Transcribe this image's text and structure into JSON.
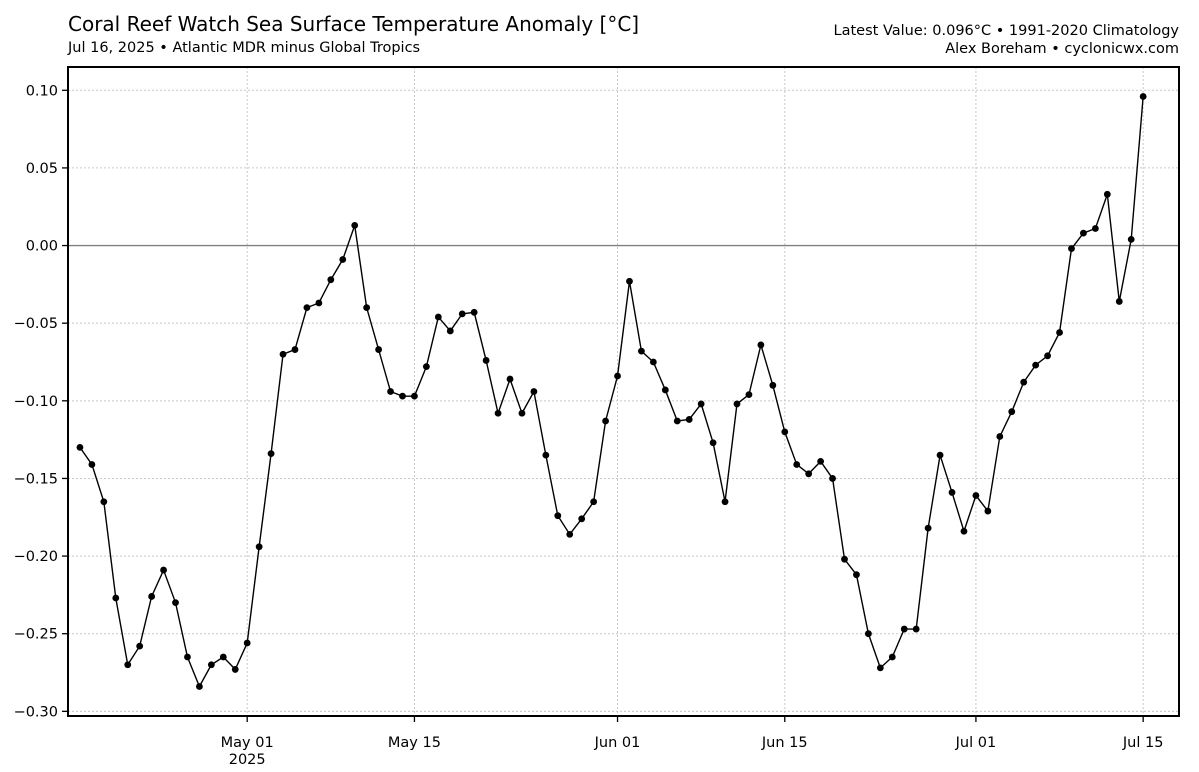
{
  "header": {
    "title": "Coral Reef Watch Sea Surface Temperature Anomaly [°C]",
    "subtitle": "Jul 16, 2025 • Atlantic MDR minus Global Tropics",
    "right_line1": "Latest Value: 0.096°C • 1991-2020 Climatology",
    "right_line2": "Alex Boreham • cyclonicwx.com"
  },
  "chart_data": {
    "type": "line",
    "title": "Coral Reef Watch Sea Surface Temperature Anomaly [°C]",
    "subtitle": "Jul 16, 2025 • Atlantic MDR minus Global Tropics",
    "xlabel": "",
    "ylabel": "",
    "x_start": "2025-04-17",
    "x_end": "2025-07-16",
    "xlim": [
      "2025-04-16",
      "2025-07-18"
    ],
    "ylim": [
      -0.303,
      0.115
    ],
    "grid": true,
    "zero_line": true,
    "line_color": "#000000",
    "zero_line_color": "#808080",
    "xticks": [
      {
        "date": "2025-05-01",
        "label": "May 01",
        "sublabel": "2025"
      },
      {
        "date": "2025-05-15",
        "label": "May 15",
        "sublabel": ""
      },
      {
        "date": "2025-06-01",
        "label": "Jun 01",
        "sublabel": ""
      },
      {
        "date": "2025-06-15",
        "label": "Jun 15",
        "sublabel": ""
      },
      {
        "date": "2025-07-01",
        "label": "Jul 01",
        "sublabel": ""
      },
      {
        "date": "2025-07-15",
        "label": "Jul 15",
        "sublabel": ""
      }
    ],
    "yticks": [
      {
        "value": 0.1,
        "label": "0.10"
      },
      {
        "value": 0.05,
        "label": "0.05"
      },
      {
        "value": 0.0,
        "label": "0.00"
      },
      {
        "value": -0.05,
        "label": "−0.05"
      },
      {
        "value": -0.1,
        "label": "−0.10"
      },
      {
        "value": -0.15,
        "label": "−0.15"
      },
      {
        "value": -0.2,
        "label": "−0.20"
      },
      {
        "value": -0.25,
        "label": "−0.25"
      },
      {
        "value": -0.3,
        "label": "−0.30"
      }
    ],
    "values": [
      -0.13,
      -0.141,
      -0.165,
      -0.227,
      -0.27,
      -0.258,
      -0.226,
      -0.209,
      -0.23,
      -0.265,
      -0.284,
      -0.27,
      -0.265,
      -0.273,
      -0.256,
      -0.194,
      -0.134,
      -0.07,
      -0.067,
      -0.04,
      -0.037,
      -0.022,
      -0.009,
      0.013,
      -0.04,
      -0.067,
      -0.094,
      -0.097,
      -0.097,
      -0.078,
      -0.046,
      -0.055,
      -0.044,
      -0.043,
      -0.074,
      -0.108,
      -0.086,
      -0.108,
      -0.094,
      -0.135,
      -0.174,
      -0.186,
      -0.176,
      -0.165,
      -0.113,
      -0.084,
      -0.023,
      -0.068,
      -0.075,
      -0.093,
      -0.113,
      -0.112,
      -0.102,
      -0.127,
      -0.165,
      -0.102,
      -0.096,
      -0.064,
      -0.09,
      -0.12,
      -0.141,
      -0.147,
      -0.139,
      -0.15,
      -0.202,
      -0.212,
      -0.25,
      -0.272,
      -0.265,
      -0.247,
      -0.247,
      -0.182,
      -0.135,
      -0.159,
      -0.184,
      -0.161,
      -0.171,
      -0.123,
      -0.107,
      -0.088,
      -0.077,
      -0.071,
      -0.056,
      -0.002,
      0.008,
      0.011,
      0.033,
      -0.036,
      0.004,
      0.096
    ]
  }
}
